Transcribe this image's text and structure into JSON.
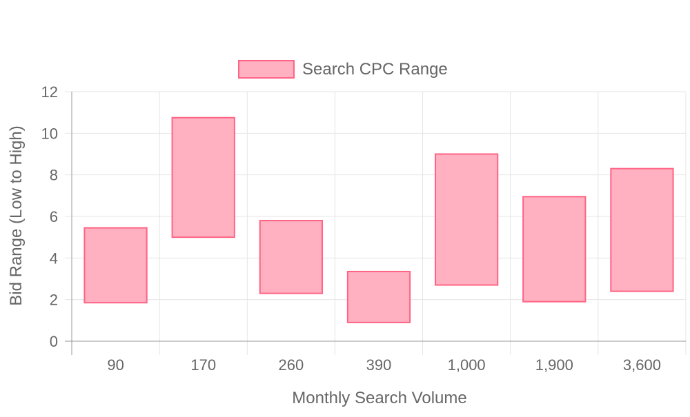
{
  "chart_data": {
    "type": "bar",
    "subtype": "floating-range",
    "categories": [
      "90",
      "170",
      "260",
      "390",
      "1,000",
      "1,900",
      "3,600"
    ],
    "series": [
      {
        "name": "Search CPC Range",
        "ranges": [
          [
            1.85,
            5.45
          ],
          [
            5.0,
            10.75
          ],
          [
            2.3,
            5.8
          ],
          [
            0.9,
            3.35
          ],
          [
            2.7,
            9.0
          ],
          [
            1.9,
            6.95
          ],
          [
            2.4,
            8.3
          ]
        ]
      }
    ],
    "xlabel": "Monthly Search Volume",
    "ylabel": "Bid Range (Low to High)",
    "ylim": [
      0,
      12
    ],
    "yticks": [
      "0",
      "2",
      "4",
      "6",
      "8",
      "10",
      "12"
    ],
    "grid": true,
    "legend": "top",
    "colors": {
      "fill": "#ffb1c1",
      "stroke": "#ff6384",
      "grid": "#e5e5e5",
      "axis": "#999999",
      "text": "#666666"
    }
  }
}
